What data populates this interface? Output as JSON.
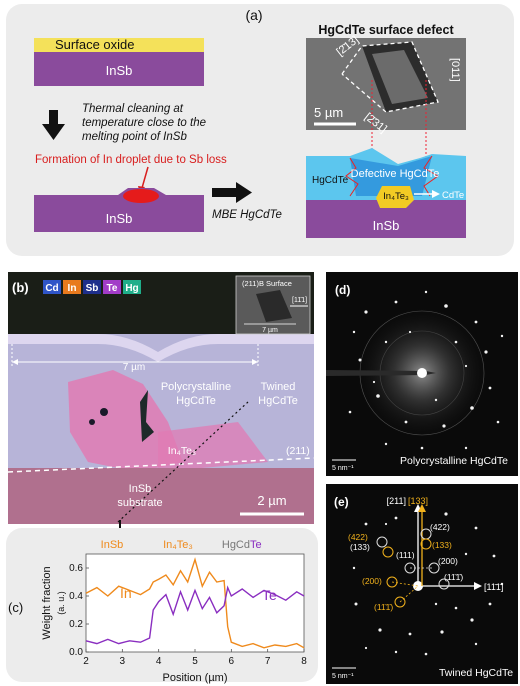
{
  "panel_a": {
    "label": "(a)",
    "oxide_label": "Surface oxide",
    "insb_label_top": "InSb",
    "thermal_text": [
      "Thermal cleaning at",
      "temperature close to the",
      "melting point of InSb"
    ],
    "droplet_text": "Formation of In droplet due to Sb loss",
    "insb_label_bottom": "InSb",
    "mbe_label": "MBE HgCdTe",
    "sem_title": "HgCdTe surface defect",
    "facet_labels": [
      "[2̄13]",
      "[011]",
      "[2̄31]"
    ],
    "scale_bar": "5 µm",
    "hgcdte_label": "HgCdTe",
    "defective_label": "Defective HgCdTe",
    "in4te3_label": "In₄Te₃",
    "cdte_label": "CdTe",
    "insb_label_right": "InSb"
  },
  "panel_b": {
    "label": "(b)",
    "legend": [
      {
        "name": "Cd",
        "color": "#2f55c8"
      },
      {
        "name": "In",
        "color": "#e87a1e"
      },
      {
        "name": "Sb",
        "color": "#1e2f8c"
      },
      {
        "name": "Te",
        "color": "#a23cc8"
      },
      {
        "name": "Hg",
        "color": "#1fae8a"
      }
    ],
    "inset_title": "(211)B Surface",
    "inset_dir": "[11̄1]",
    "inset_scale": "7 µm",
    "width_label": "7 µm",
    "poly_label": [
      "Polycrystalline",
      "HgCdTe"
    ],
    "twinned_label": [
      "Twined",
      "HgCdTe"
    ],
    "in4te3_label": "In₄Te₃",
    "plane_label": "(211)",
    "insb_label": [
      "InSb",
      "substrate"
    ],
    "scale_bar": "2 µm"
  },
  "panel_c": {
    "label": "(c)",
    "region_labels": {
      "insb": "InSb",
      "in4te3": "In₄Te₃",
      "hgcdte_prefix": "HgCd",
      "hgcdte_te": "Te"
    },
    "chart_data": {
      "type": "line",
      "xlabel": "Position (µm)",
      "ylabel": "Weight fraction",
      "yunit": "(a. u.)",
      "xlim": [
        2,
        8
      ],
      "ylim": [
        0,
        0.7
      ],
      "xticks": [
        "2",
        "3",
        "4",
        "5",
        "6",
        "7",
        "8"
      ],
      "yticks": [
        "0.0",
        "0.2",
        "0.4",
        "0.6"
      ],
      "series": [
        {
          "name": "In",
          "color": "#ef8a1c",
          "x": [
            2.0,
            2.3,
            2.6,
            2.9,
            3.2,
            3.5,
            3.75,
            3.85,
            4.0,
            4.2,
            4.4,
            4.6,
            4.8,
            5.0,
            5.2,
            5.4,
            5.6,
            5.8,
            5.9,
            6.0,
            6.3,
            6.6,
            6.9,
            7.2,
            7.5,
            7.8,
            8.0
          ],
          "y": [
            0.42,
            0.46,
            0.4,
            0.47,
            0.44,
            0.41,
            0.45,
            0.5,
            0.52,
            0.55,
            0.48,
            0.58,
            0.5,
            0.66,
            0.47,
            0.57,
            0.5,
            0.51,
            0.18,
            0.07,
            0.04,
            0.06,
            0.03,
            0.05,
            0.04,
            0.06,
            0.03
          ]
        },
        {
          "name": "Te",
          "color": "#8a2ec0",
          "x": [
            2.0,
            2.3,
            2.6,
            2.9,
            3.2,
            3.5,
            3.75,
            3.85,
            4.0,
            4.2,
            4.4,
            4.6,
            4.8,
            5.0,
            5.2,
            5.4,
            5.6,
            5.8,
            5.9,
            6.0,
            6.3,
            6.6,
            6.9,
            7.2,
            7.5,
            7.8,
            8.0
          ],
          "y": [
            0.08,
            0.06,
            0.09,
            0.06,
            0.08,
            0.07,
            0.1,
            0.3,
            0.36,
            0.41,
            0.27,
            0.43,
            0.3,
            0.44,
            0.31,
            0.39,
            0.28,
            0.33,
            0.46,
            0.4,
            0.45,
            0.39,
            0.44,
            0.41,
            0.37,
            0.43,
            0.4
          ]
        }
      ]
    }
  },
  "panel_d": {
    "label": "(d)",
    "scale": "5 nm⁻¹",
    "caption": "Polycrystalline HgCdTe"
  },
  "panel_e": {
    "label": "(e)",
    "scale": "5 nm⁻¹",
    "caption": "Twined HgCdTe",
    "dir_211": "[211]",
    "dir_133": "[133]",
    "dir_111": "[11̄1̄]",
    "spots_white": [
      "(422)",
      "(133)",
      "(111)",
      "(200)",
      "(11̄1̄)"
    ],
    "spots_orange": [
      "(422)",
      "(133)",
      "(200)",
      "(11̄1̄)"
    ],
    "spot_orange_133": "(133)"
  }
}
